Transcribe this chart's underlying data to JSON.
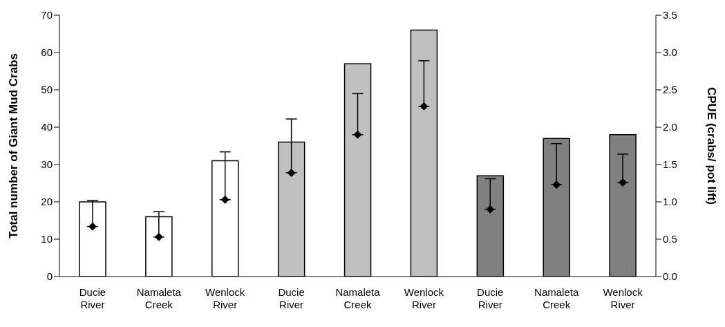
{
  "chart_data": {
    "type": "bar",
    "ylabel": "Total number of Giant Mud Crabs",
    "y2label": "CPUE (crabs/ pot lift)",
    "categories": [
      "Ducie River",
      "Namaleta Creek",
      "Wenlock River",
      "Ducie River",
      "Namaleta Creek",
      "Wenlock River",
      "Ducie River",
      "Namaleta Creek",
      "Wenlock River"
    ],
    "series": [
      {
        "colors": [
          "#ffffff",
          "#ffffff",
          "#ffffff",
          "#c0c0c0",
          "#c0c0c0",
          "#c0c0c0",
          "#808080",
          "#808080",
          "#808080"
        ],
        "values": [
          20,
          16,
          31,
          36,
          57,
          66,
          27,
          37,
          38
        ]
      },
      {
        "type": "scatter",
        "axis": "y2",
        "color": "#000000",
        "marker": "diamond",
        "values": [
          0.67,
          0.53,
          1.03,
          1.39,
          1.9,
          2.28,
          0.9,
          1.23,
          1.26
        ],
        "errors": [
          [
            0.67,
            1.02
          ],
          [
            0.53,
            0.87
          ],
          [
            1.03,
            1.67
          ],
          [
            1.39,
            2.11
          ],
          [
            1.9,
            2.45
          ],
          [
            2.28,
            2.89
          ],
          [
            0.9,
            1.31
          ],
          [
            1.23,
            1.78
          ],
          [
            1.26,
            1.64
          ]
        ]
      }
    ],
    "ylim": [
      0,
      70
    ],
    "yticks": [
      0,
      10,
      20,
      30,
      40,
      50,
      60,
      70
    ],
    "y2lim": [
      0,
      3.5
    ],
    "y2ticks": [
      {
        "value": 0,
        "label": "0.0"
      },
      {
        "value": 0.5,
        "label": "0.5"
      },
      {
        "value": 1,
        "label": "1.0"
      },
      {
        "value": 1.5,
        "label": "1.5"
      },
      {
        "value": 2,
        "label": "2.0"
      },
      {
        "value": 2.5,
        "label": "2.5"
      },
      {
        "value": 3,
        "label": "3.0"
      },
      {
        "value": 3.5,
        "label": "3.5"
      }
    ],
    "grid": false,
    "legend": false
  }
}
